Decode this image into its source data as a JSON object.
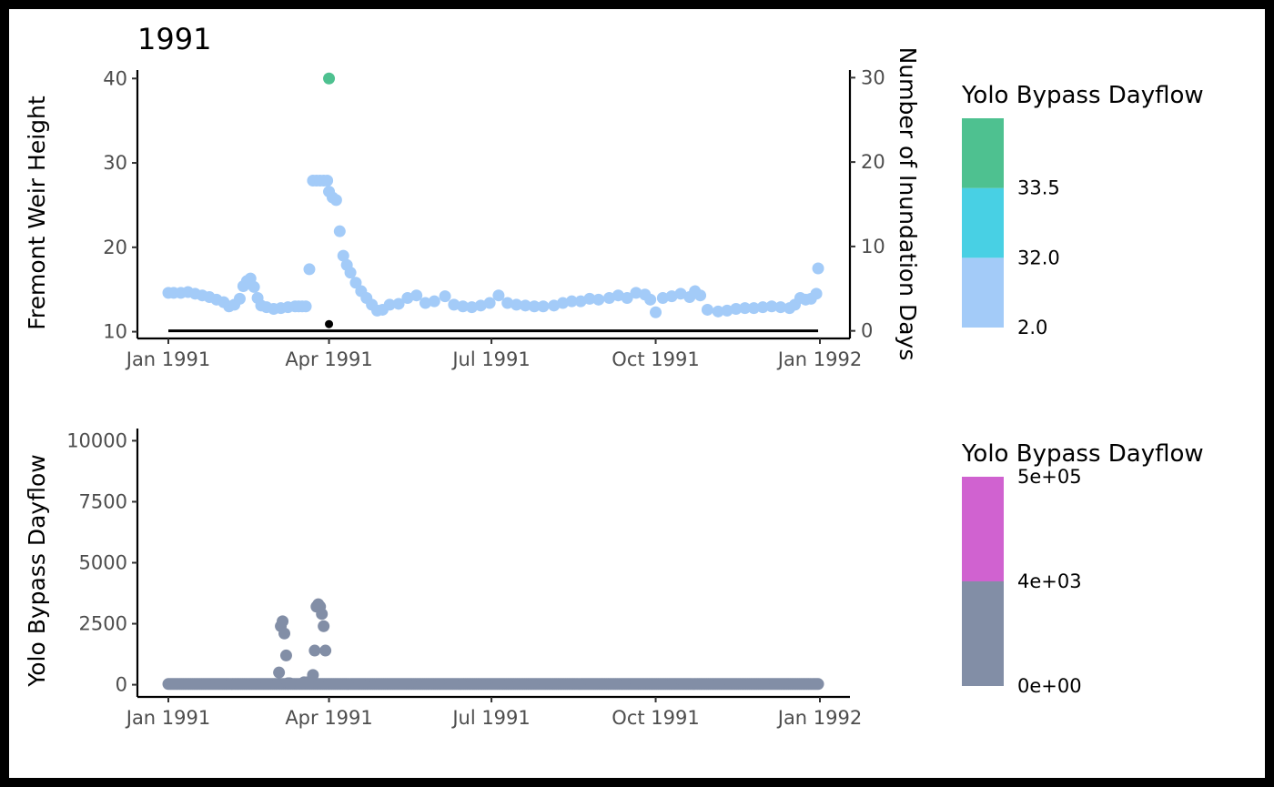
{
  "chart_data": [
    {
      "type": "scatter",
      "title": "1991",
      "ylabel": "Fremont Weir Height",
      "y2label": "Number of Inundation Days",
      "xlabel": "",
      "x_ticks": [
        "Jan 1991",
        "Apr 1991",
        "Jul 1991",
        "Oct 1991",
        "Jan 1992"
      ],
      "y_ticks": [
        10,
        20,
        30,
        40
      ],
      "y2_ticks": [
        0,
        10,
        20,
        30
      ],
      "ylim": [
        9.2,
        41.0
      ],
      "y2lim": [
        -0.9,
        30.9
      ],
      "grid": false,
      "legend": {
        "title": "Yolo Bypass Dayflow",
        "placement": "right",
        "bins": [
          {
            "color": "#A3CBF8"
          },
          {
            "color": "#48D0E4"
          },
          {
            "color": "#4EC190"
          }
        ],
        "labels": [
          "2.0",
          "32.0",
          "33.5"
        ]
      },
      "series": [
        {
          "color": "#A3CBF8",
          "x": [
            "1991-01-01",
            "1991-01-04",
            "1991-01-08",
            "1991-01-12",
            "1991-01-16",
            "1991-01-20",
            "1991-01-24",
            "1991-01-28",
            "1991-02-01",
            "1991-02-04",
            "1991-02-07",
            "1991-02-10",
            "1991-02-12",
            "1991-02-14",
            "1991-02-16",
            "1991-02-18",
            "1991-02-20",
            "1991-02-22",
            "1991-02-25",
            "1991-03-01",
            "1991-03-05",
            "1991-03-09",
            "1991-03-13",
            "1991-03-15",
            "1991-03-17",
            "1991-03-19",
            "1991-03-21",
            "1991-03-23",
            "1991-03-25",
            "1991-03-27",
            "1991-03-29",
            "1991-03-31",
            "1991-04-01",
            "1991-04-03",
            "1991-04-05",
            "1991-04-07",
            "1991-04-09",
            "1991-04-11",
            "1991-04-13",
            "1991-04-16",
            "1991-04-19",
            "1991-04-22",
            "1991-04-25",
            "1991-04-28",
            "1991-05-01",
            "1991-05-05",
            "1991-05-10",
            "1991-05-15",
            "1991-05-20",
            "1991-05-25",
            "1991-05-30",
            "1991-06-05",
            "1991-06-10",
            "1991-06-15",
            "1991-06-20",
            "1991-06-25",
            "1991-06-30",
            "1991-07-05",
            "1991-07-10",
            "1991-07-15",
            "1991-07-20",
            "1991-07-25",
            "1991-07-30",
            "1991-08-05",
            "1991-08-10",
            "1991-08-15",
            "1991-08-20",
            "1991-08-25",
            "1991-08-30",
            "1991-09-05",
            "1991-09-10",
            "1991-09-15",
            "1991-09-20",
            "1991-09-25",
            "1991-09-28",
            "1991-10-01",
            "1991-10-05",
            "1991-10-10",
            "1991-10-15",
            "1991-10-20",
            "1991-10-23",
            "1991-10-26",
            "1991-10-30",
            "1991-11-05",
            "1991-11-10",
            "1991-11-15",
            "1991-11-20",
            "1991-11-25",
            "1991-11-30",
            "1991-12-05",
            "1991-12-10",
            "1991-12-15",
            "1991-12-18",
            "1991-12-21",
            "1991-12-24",
            "1991-12-27",
            "1991-12-30"
          ],
          "y": [
            14.6,
            14.6,
            14.6,
            14.7,
            14.5,
            14.3,
            14.1,
            13.8,
            13.5,
            13.0,
            13.2,
            13.9,
            15.4,
            16.0,
            16.3,
            15.3,
            14.0,
            13.1,
            12.9,
            12.7,
            12.8,
            12.9,
            13.0,
            13.0,
            13.0,
            13.0,
            17.4,
            27.9,
            27.9,
            27.9,
            27.9,
            27.9,
            26.6,
            25.9,
            25.6,
            21.9,
            19.0,
            17.9,
            17.0,
            15.8,
            14.8,
            14.0,
            13.2,
            12.5,
            12.6,
            13.2,
            13.3,
            14.0,
            14.3,
            13.4,
            13.6,
            14.2,
            13.2,
            13.0,
            12.9,
            13.1,
            13.4,
            14.3,
            13.4,
            13.2,
            13.1,
            13.0,
            13.0,
            13.1,
            13.4,
            13.6,
            13.6,
            13.9,
            13.8,
            14.0,
            14.3,
            14.0,
            14.6,
            14.4,
            13.8,
            12.3,
            14.0,
            14.2,
            14.5,
            14.1,
            14.8,
            14.3,
            12.6,
            12.4,
            12.5,
            12.7,
            12.8,
            12.8,
            12.9,
            13.0,
            12.9,
            12.8,
            13.2,
            14.0,
            13.8,
            13.9,
            14.5
          ]
        },
        {
          "color": "#A3CBF8",
          "x": [
            "1991-12-31"
          ],
          "y": [
            17.5
          ]
        },
        {
          "color": "#4EC190",
          "x": [
            "1991-04-01"
          ],
          "y": [
            40.0
          ]
        }
      ],
      "inundation_days": {
        "color": "#000000",
        "x_start": "1991-01-01",
        "x_end": "1991-12-31",
        "y2_value": 0,
        "marker": {
          "x": "1991-04-01",
          "y2": 0.8
        }
      }
    },
    {
      "type": "scatter",
      "title": "",
      "ylabel": "Yolo Bypass Dayflow",
      "xlabel": "",
      "x_ticks": [
        "Jan 1991",
        "Apr 1991",
        "Jul 1991",
        "Oct 1991",
        "Jan 1992"
      ],
      "y_ticks": [
        "0",
        "2500",
        "5000",
        "7500",
        "10000"
      ],
      "ylim": [
        -500,
        10500
      ],
      "grid": false,
      "legend": {
        "title": "Yolo Bypass Dayflow",
        "placement": "right",
        "bins": [
          {
            "color": "#828EA6"
          },
          {
            "color": "#D062D0"
          }
        ],
        "labels": [
          "0e+00",
          "4e+03",
          "5e+05"
        ]
      },
      "series": [
        {
          "color": "#828EA6",
          "baseline": {
            "x_start": "1991-01-01",
            "x_end": "1991-12-31",
            "y": 30
          },
          "x": [
            "1991-03-04",
            "1991-03-05",
            "1991-03-06",
            "1991-03-07",
            "1991-03-08",
            "1991-03-09",
            "1991-03-10",
            "1991-03-23",
            "1991-03-24",
            "1991-03-25",
            "1991-03-26",
            "1991-03-27",
            "1991-03-28",
            "1991-03-29",
            "1991-03-30",
            "1991-03-18",
            "1991-03-20"
          ],
          "y": [
            500,
            2400,
            2600,
            2100,
            1200,
            60,
            60,
            400,
            1400,
            3200,
            3300,
            3200,
            2900,
            2400,
            1400,
            100,
            100
          ]
        }
      ]
    }
  ]
}
